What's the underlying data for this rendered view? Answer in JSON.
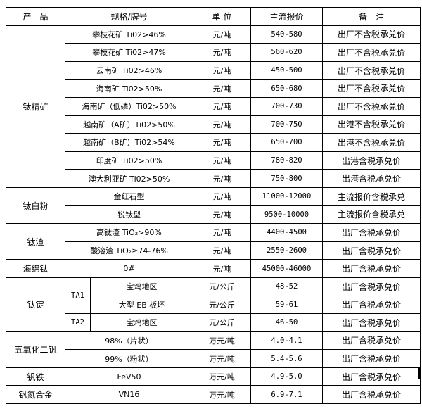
{
  "headers": [
    "产　品",
    "规格/牌号",
    "单 位",
    "主流报价",
    "备　注"
  ],
  "groups": {
    "ti_concentrate": {
      "product": "钛精矿",
      "rows": [
        {
          "spec": "攀枝花矿 Ti02>46%",
          "unit": "元/吨",
          "price": "540-580",
          "note": "出厂不含税承兑价"
        },
        {
          "spec": "攀枝花矿 Ti02>47%",
          "unit": "元/吨",
          "price": "560-620",
          "note": "出厂不含税承兑价"
        },
        {
          "spec": "云南矿 Ti02>46%",
          "unit": "元/吨",
          "price": "450-500",
          "note": "出厂不含税承兑价"
        },
        {
          "spec": "海南矿 Ti02>50%",
          "unit": "元/吨",
          "price": "650-680",
          "note": "出厂不含税承兑价"
        },
        {
          "spec": "海南矿（低磷）Ti02>50%",
          "unit": "元/吨",
          "price": "700-730",
          "note": "出厂不含税承兑价"
        },
        {
          "spec": "越南矿（A矿）Ti02>50%",
          "unit": "元/吨",
          "price": "700-750",
          "note": "出港不含税承兑价"
        },
        {
          "spec": "越南矿（B矿）Ti02>54%",
          "unit": "元/吨",
          "price": "650-700",
          "note": "出港不含税承兑价"
        },
        {
          "spec": "印度矿 Ti02>50%",
          "unit": "元/吨",
          "price": "780-820",
          "note": "出港含税承兑价"
        },
        {
          "spec": "澳大利亚矿 Ti02>50%",
          "unit": "元/吨",
          "price": "750-800",
          "note": "出港含税承兑价"
        }
      ]
    },
    "ti_white": {
      "product": "钛白粉",
      "rows": [
        {
          "spec": "金红石型",
          "unit": "元/吨",
          "price": "11000-12000",
          "note": "主流报价含税承兑"
        },
        {
          "spec": "锐钛型",
          "unit": "元/吨",
          "price": "9500-10000",
          "note": "主流报价含税承兑"
        }
      ]
    },
    "ti_slag": {
      "product": "钛渣",
      "rows": [
        {
          "spec": "高钛渣 TiO₂>90%",
          "unit": "元/吨",
          "price": "4400-4500",
          "note": "出厂含税承兑价"
        },
        {
          "spec": "酸溶渣 TiO₂≥74-76%",
          "unit": "元/吨",
          "price": "2550-2600",
          "note": "出厂含税承兑价"
        }
      ]
    },
    "ti_sponge": {
      "product": "海绵钛",
      "rows": [
        {
          "spec": "0#",
          "unit": "元/吨",
          "price": "45000-46000",
          "note": "出厂含税承兑价"
        }
      ]
    },
    "ti_ingot": {
      "product": "钛锭",
      "grades": [
        "TA1",
        "TA2"
      ],
      "rows": [
        {
          "spec": "宝鸡地区",
          "unit": "元/公斤",
          "price": "48-52",
          "note": "出厂含税承兑价"
        },
        {
          "spec": "大型 EB 板坯",
          "unit": "元/公斤",
          "price": "59-61",
          "note": "出厂含税承兑价"
        },
        {
          "spec": "宝鸡地区",
          "unit": "元/公斤",
          "price": "46-50",
          "note": "出厂含税承兑价"
        }
      ]
    },
    "v2o5": {
      "product": "五氧化二钒",
      "rows": [
        {
          "spec": "98%（片状）",
          "unit": "万元/吨",
          "price": "4.0-4.1",
          "note": "出厂含税承兑价"
        },
        {
          "spec": "99%（粉状）",
          "unit": "万元/吨",
          "price": "5.4-5.6",
          "note": "出厂含税承兑价"
        }
      ]
    },
    "fev": {
      "product": "钒铁",
      "rows": [
        {
          "spec": "FeV50",
          "unit": "万元/吨",
          "price": "4.9-5.0",
          "note": "出厂含税承兑价"
        }
      ]
    },
    "vn": {
      "product": "钒氮合金",
      "rows": [
        {
          "spec": "VN16",
          "unit": "万元/吨",
          "price": "6.9-7.1",
          "note": "出厂含税承兑价"
        }
      ]
    }
  }
}
